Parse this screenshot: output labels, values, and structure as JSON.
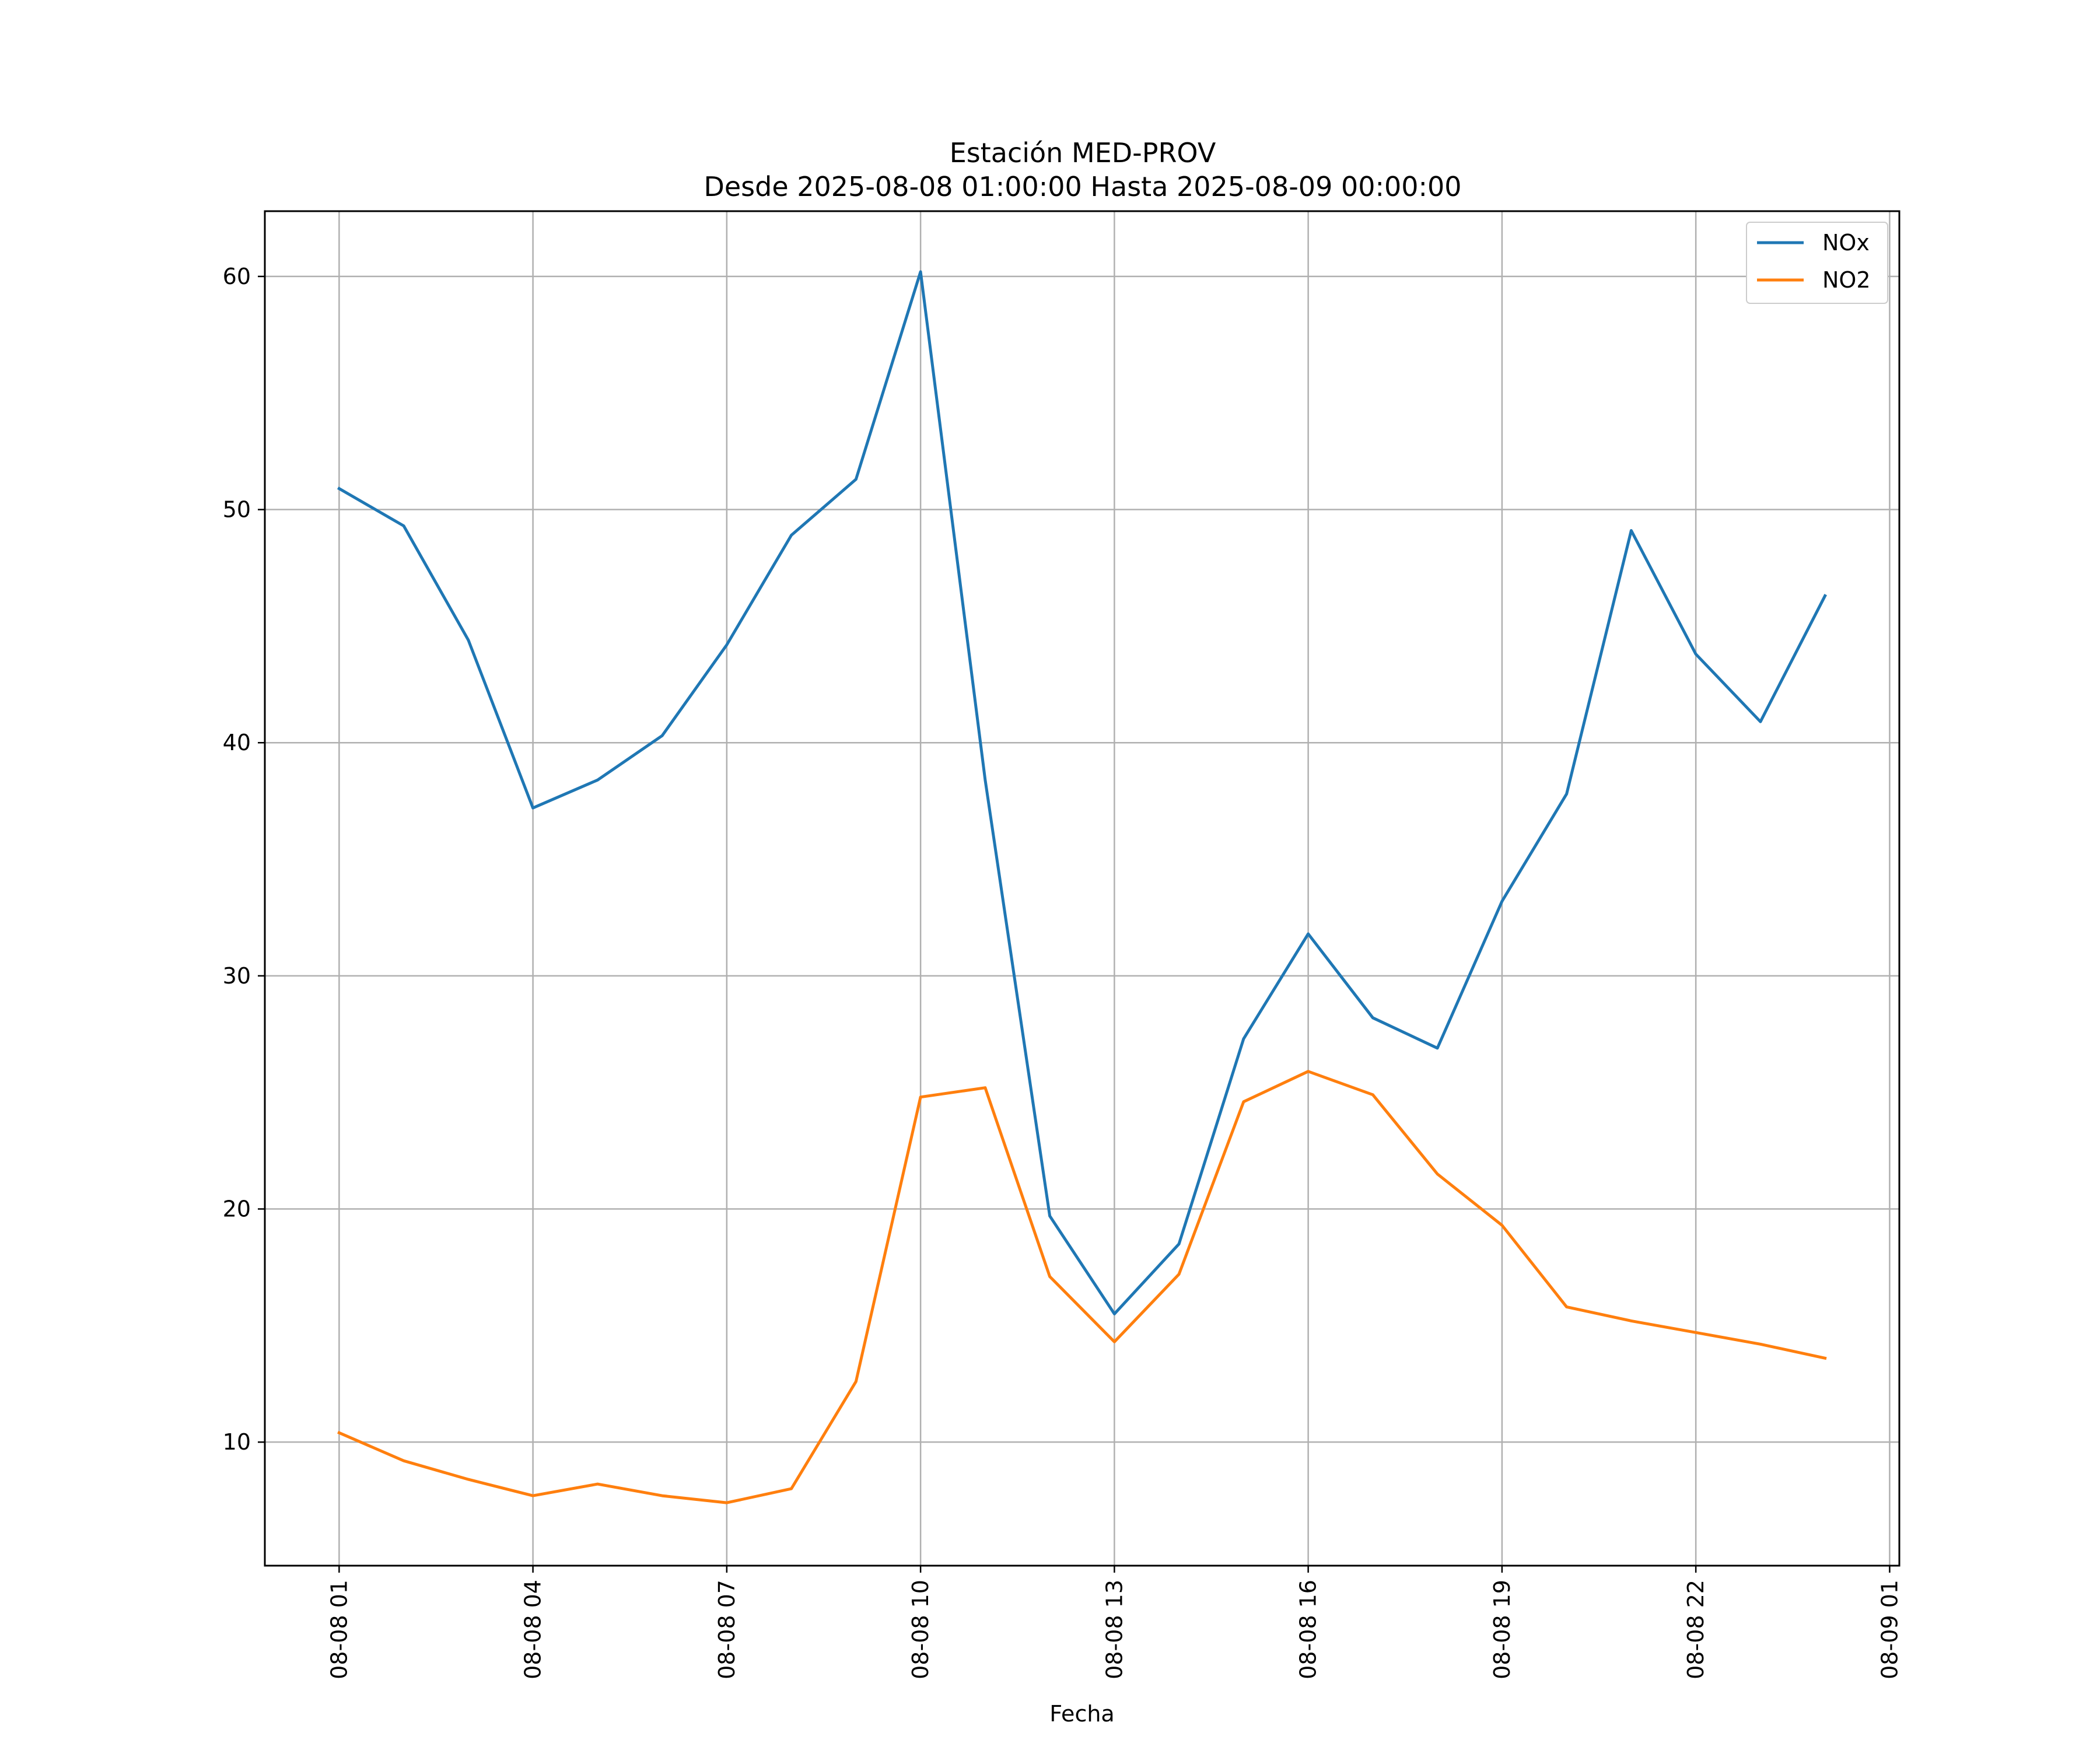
{
  "chart_data": {
    "type": "line",
    "title": "Estación MED-PROV",
    "subtitle": "Desde 2025-08-08 01:00:00 Hasta 2025-08-09 00:00:00",
    "xlabel": "Fecha",
    "ylabel": "",
    "x": [
      "2025-08-08 01:00",
      "2025-08-08 02:00",
      "2025-08-08 03:00",
      "2025-08-08 04:00",
      "2025-08-08 05:00",
      "2025-08-08 06:00",
      "2025-08-08 07:00",
      "2025-08-08 08:00",
      "2025-08-08 09:00",
      "2025-08-08 10:00",
      "2025-08-08 11:00",
      "2025-08-08 12:00",
      "2025-08-08 13:00",
      "2025-08-08 14:00",
      "2025-08-08 15:00",
      "2025-08-08 16:00",
      "2025-08-08 17:00",
      "2025-08-08 18:00",
      "2025-08-08 19:00",
      "2025-08-08 20:00",
      "2025-08-08 21:00",
      "2025-08-08 22:00",
      "2025-08-08 23:00",
      "2025-08-09 00:00"
    ],
    "x_ticks": [
      {
        "value": "2025-08-08 01:00",
        "label": "08-08 01"
      },
      {
        "value": "2025-08-08 04:00",
        "label": "08-08 04"
      },
      {
        "value": "2025-08-08 07:00",
        "label": "08-08 07"
      },
      {
        "value": "2025-08-08 10:00",
        "label": "08-08 10"
      },
      {
        "value": "2025-08-08 13:00",
        "label": "08-08 13"
      },
      {
        "value": "2025-08-08 16:00",
        "label": "08-08 16"
      },
      {
        "value": "2025-08-08 19:00",
        "label": "08-08 19"
      },
      {
        "value": "2025-08-08 22:00",
        "label": "08-08 22"
      },
      {
        "value": "2025-08-09 01:00",
        "label": "08-09 01"
      }
    ],
    "xlim": [
      "2025-08-07 23:51",
      "2025-08-09 01:09"
    ],
    "y_ticks": [
      10,
      20,
      30,
      40,
      50,
      60
    ],
    "ylim": [
      4.7,
      62.8
    ],
    "grid": true,
    "legend_position": "top-right",
    "series": [
      {
        "name": "NOx",
        "color": "#1f77b4",
        "values": [
          50.9,
          49.3,
          44.4,
          37.2,
          38.4,
          40.3,
          44.2,
          48.9,
          51.3,
          60.2,
          38.4,
          19.7,
          15.5,
          18.5,
          27.3,
          31.8,
          28.2,
          26.9,
          33.2,
          37.8,
          49.1,
          43.8,
          40.9,
          46.3
        ]
      },
      {
        "name": "NO2",
        "color": "#ff7f0e",
        "values": [
          10.4,
          9.2,
          8.4,
          7.7,
          8.2,
          7.7,
          7.4,
          8.0,
          12.6,
          24.8,
          25.2,
          17.1,
          14.3,
          17.2,
          24.6,
          25.9,
          24.9,
          21.5,
          19.3,
          15.8,
          15.2,
          14.7,
          14.2,
          13.6
        ]
      }
    ]
  }
}
